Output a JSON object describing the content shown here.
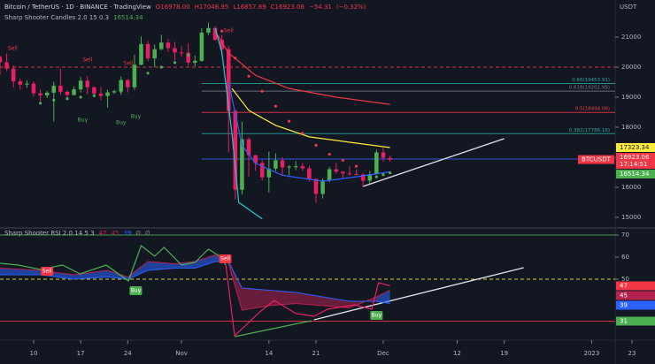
{
  "chart_data": [
    {
      "type": "candlestick",
      "title": "Bitcoin / TetherUS · 1D · BINANCE · TradingView",
      "ohlc_labels": [
        {
          "value": 16978.0,
          "label": "O16978.00"
        },
        {
          "value": 17048.95,
          "label": "H17048.95"
        },
        {
          "value": 16857.89,
          "label": "L16857.89"
        },
        {
          "value": 16923.06,
          "label": "C16923.06"
        },
        {
          "value": -54.31,
          "label": "−54.31"
        },
        {
          "value": -0.32,
          "label": "(−0.32%)"
        }
      ],
      "ohlc_color": "#f23645",
      "currency": "USDT",
      "indicator": "Sharp Shooter Candles 2.0 15 0.3",
      "symbol": "BTCUSDT",
      "countdown": "17:14:51",
      "box_color": "#f23645",
      "up_color": "#4caf50",
      "down_color": "#e91e63",
      "x": [
        4,
        5,
        6,
        7,
        8,
        9,
        10,
        11,
        12,
        13,
        14,
        15,
        16,
        17,
        18,
        19,
        20,
        21,
        22,
        23,
        24,
        25,
        26,
        27,
        28,
        29,
        30,
        31,
        32,
        33,
        34,
        35,
        36,
        37,
        38,
        39,
        40,
        41,
        42,
        43,
        44,
        45,
        46,
        47,
        48,
        49,
        50,
        51,
        52,
        53,
        54,
        55,
        56,
        57,
        58,
        59,
        60,
        61,
        62
      ],
      "open": [
        20340,
        20160,
        19950,
        19530,
        19420,
        19450,
        19130,
        19060,
        19150,
        19380,
        19180,
        19070,
        19260,
        19550,
        19330,
        19120,
        19040,
        19160,
        19200,
        19570,
        19330,
        20080,
        20770,
        20290,
        20600,
        20820,
        20630,
        20490,
        20480,
        20150,
        20210,
        21150,
        21300,
        20910,
        20600,
        18540,
        15920,
        17600,
        17070,
        16810,
        16330,
        16620,
        16900,
        16660,
        16690,
        16700,
        16630,
        16280,
        15780,
        16230,
        16600,
        16520,
        16460,
        16440,
        16430,
        16220,
        16440,
        17160,
        16978.0
      ],
      "high": [
        20370,
        20450,
        20050,
        19620,
        19560,
        19530,
        19260,
        19220,
        19510,
        19950,
        19220,
        19360,
        19670,
        19710,
        19360,
        19340,
        19250,
        19250,
        19690,
        19600,
        20410,
        21020,
        20870,
        20750,
        21080,
        20930,
        20840,
        20700,
        20800,
        20390,
        21300,
        21480,
        21370,
        21080,
        20700,
        18590,
        18180,
        17660,
        17080,
        16900,
        17190,
        17130,
        17000,
        16740,
        16870,
        16810,
        16720,
        16290,
        16300,
        16680,
        16810,
        16530,
        16700,
        16600,
        16480,
        16550,
        17250,
        17320,
        17048.95
      ],
      "low": [
        19750,
        19860,
        19320,
        19250,
        19320,
        19020,
        18860,
        18970,
        18190,
        19080,
        18980,
        19060,
        19160,
        19100,
        19000,
        18900,
        18650,
        19110,
        19070,
        19160,
        19240,
        20060,
        20200,
        20000,
        20560,
        20500,
        20220,
        20340,
        20050,
        20030,
        20180,
        21070,
        20880,
        20390,
        17170,
        15590,
        15760,
        16360,
        16550,
        16230,
        15820,
        16540,
        16400,
        16400,
        16570,
        16550,
        16200,
        15480,
        15630,
        16170,
        16460,
        16300,
        16400,
        16400,
        16000,
        16110,
        16430,
        16850,
        16857.89
      ],
      "close": [
        20160,
        19950,
        19530,
        19420,
        19450,
        19130,
        19060,
        19150,
        19380,
        19180,
        19070,
        19260,
        19550,
        19330,
        19120,
        19040,
        19160,
        19200,
        19570,
        19330,
        20080,
        20770,
        20290,
        20600,
        20820,
        20630,
        20490,
        20480,
        20150,
        20210,
        21150,
        21300,
        20910,
        20600,
        18540,
        15920,
        17600,
        17070,
        16810,
        16330,
        16620,
        16900,
        16660,
        16690,
        16700,
        16630,
        16280,
        15780,
        16230,
        16600,
        16520,
        16460,
        16440,
        16430,
        16220,
        16440,
        17160,
        16978,
        16923.06
      ],
      "lines": [
        {
          "color": "#f23645",
          "x": [
            36,
            38,
            42,
            47,
            54,
            62
          ],
          "values": [
            21200,
            20470,
            19730,
            19290,
            19000,
            18760
          ]
        },
        {
          "color": "#ffeb3b",
          "box_color": "#ffeb3b",
          "x": [
            38.5,
            41,
            45,
            50,
            57,
            62
          ],
          "values": [
            19290,
            18560,
            18060,
            17680,
            17470,
            17323.34
          ]
        },
        {
          "color": "#2962ff",
          "box_color": "#4caf50",
          "x": [
            38,
            40,
            42,
            46,
            52,
            57,
            62
          ],
          "values": [
            19500,
            17400,
            16800,
            16400,
            16200,
            16350,
            16514.34
          ]
        },
        {
          "color": "#26c6da",
          "x": [
            36,
            37,
            38.5,
            39.5,
            43
          ],
          "values": [
            21300,
            20500,
            17800,
            15500,
            14950
          ]
        }
      ],
      "dots": [
        {
          "color": "#4caf50",
          "x": [
            10,
            12,
            14,
            16,
            18,
            20,
            22,
            24,
            26,
            28,
            30,
            32,
            34,
            60,
            61,
            62
          ],
          "values": [
            18800,
            18900,
            18950,
            19000,
            19050,
            19100,
            19200,
            19500,
            19800,
            20000,
            20150,
            20400,
            20700,
            16350,
            16420,
            16480
          ]
        },
        {
          "color": "#f23645",
          "x": [
            37,
            39,
            41,
            43,
            45,
            47,
            49,
            51,
            53,
            55,
            57
          ],
          "values": [
            21200,
            20300,
            19700,
            19200,
            18700,
            18200,
            17800,
            17400,
            17100,
            16900,
            16700
          ]
        }
      ],
      "levels": [
        {
          "value": 20000,
          "color": "#f23645",
          "dashed": true
        },
        {
          "value": 19453.91,
          "x0": 34,
          "label": "0.66(19453.91)",
          "color": "#26a69a"
        },
        {
          "value": 19201.95,
          "x0": 34,
          "label": "0.618(19201.95)",
          "color": "#787b86"
        },
        {
          "value": 18494.06,
          "x0": 34,
          "label": "0.5(18494.06)",
          "color": "#f23645"
        },
        {
          "value": 17786.16,
          "x0": 34,
          "label": "0.382(17786.16)",
          "color": "#26a69a"
        },
        {
          "value": 16940,
          "x0": 34,
          "color": "#2962ff"
        }
      ],
      "annotations": [
        {
          "text": "Sell",
          "x": 5.9,
          "y": 20620,
          "color": "#f23645"
        },
        {
          "text": "Sell",
          "x": 17,
          "y": 20240,
          "color": "#f23645"
        },
        {
          "text": "Sell",
          "x": 23.1,
          "y": 20120,
          "color": "#f23645"
        },
        {
          "text": "Sell",
          "x": 38,
          "y": 21210,
          "color": "#f23645"
        },
        {
          "text": "Buy",
          "x": 16.3,
          "y": 18240,
          "color": "#4caf50"
        },
        {
          "text": "Buy",
          "x": 22,
          "y": 18150,
          "color": "#4caf50"
        },
        {
          "text": "Buy",
          "x": 24.2,
          "y": 18350,
          "color": "#4caf50"
        }
      ],
      "trendlines": [
        {
          "color": "#e0e3eb",
          "x": [
            58,
            79
          ],
          "values": [
            16030,
            17620
          ]
        }
      ],
      "xlim": [
        4,
        95.5
      ],
      "ylim": [
        14647,
        22235
      ],
      "yticks": [
        15000,
        16000,
        17000,
        18000,
        19000,
        20000,
        21000
      ]
    },
    {
      "type": "line",
      "indicator": "Sharp Shooter RSI 2.0 14 5 3",
      "na_labels": [
        "Ø",
        "Ø"
      ],
      "series": [
        {
          "color": "#4caf50",
          "x": [
            4,
            6.7,
            10,
            13.3,
            15.9,
            19.8,
            23.1,
            25,
            27,
            28.4,
            31,
            33,
            35,
            36.7,
            37.6
          ],
          "values": [
            57.2,
            56.4,
            54.4,
            56.4,
            52.4,
            56.4,
            49.2,
            65.2,
            60.4,
            64.4,
            56.4,
            57.6,
            63.6,
            60.4,
            56.4
          ]
        },
        {
          "color": "#e91e63",
          "box_color": "#f23645",
          "x": [
            37.6,
            38.9,
            42.8,
            44.8,
            48,
            50.7,
            52.7,
            56.7,
            59.3,
            60.3,
            62
          ],
          "values": [
            56.4,
            24.4,
            35.6,
            40.4,
            34.5,
            33.2,
            36.4,
            38.4,
            36.4,
            48.4,
            47
          ]
        }
      ],
      "band": [
        {
          "color": "#b2234f",
          "box_color": "#b2234f",
          "x": [
            4,
            10,
            15,
            20,
            23,
            26,
            30,
            33,
            36,
            38,
            40,
            44,
            48,
            52,
            56,
            60,
            62
          ],
          "values": [
            55,
            54,
            52,
            54,
            51,
            58,
            57,
            58,
            61,
            57,
            36,
            38,
            39,
            38,
            37,
            42,
            45
          ]
        },
        {
          "color": "#2962ff",
          "box_color": "#2962ff",
          "x": [
            4,
            10,
            15,
            20,
            23,
            26,
            30,
            33,
            36,
            38,
            40,
            44,
            48,
            52,
            56,
            60,
            62
          ],
          "values": [
            52,
            52,
            50,
            51,
            50,
            54,
            55,
            55,
            58,
            58,
            46,
            45,
            44,
            42,
            40,
            40,
            39
          ]
        }
      ],
      "fill_colors": [
        "#2962ff",
        "#b2234f"
      ],
      "levels": [
        {
          "value": 70,
          "color": "#4caf50"
        },
        {
          "value": 50,
          "color": "#ffeb3b",
          "dashed": true
        },
        {
          "value": 31,
          "color": "#f23645",
          "box_color": "#4caf50"
        }
      ],
      "annotations": [
        {
          "text": "Sell",
          "x": 11,
          "y": 53.6,
          "color": "#f23645",
          "boxed": true
        },
        {
          "text": "Sell",
          "x": 37.5,
          "y": 59.2,
          "color": "#f23645",
          "boxed": true
        },
        {
          "text": "Buy",
          "x": 24.2,
          "y": 44.8,
          "color": "#4caf50",
          "boxed": true
        },
        {
          "text": "Buy",
          "x": 60,
          "y": 33.6,
          "color": "#4caf50",
          "boxed": true
        }
      ],
      "trendlines": [
        {
          "color": "#4caf50",
          "x": [
            38.9,
            50.3
          ],
          "values": [
            24,
            31.2
          ]
        },
        {
          "color": "#e0e3eb",
          "x": [
            50.7,
            81.9
          ],
          "values": [
            31.6,
            55.2
          ]
        }
      ],
      "xlim": [
        4,
        95.5
      ],
      "ylim": [
        22.4,
        73.2
      ],
      "yticks": [
        50,
        60,
        70
      ],
      "xticks": [
        {
          "value": 9,
          "label": "10"
        },
        {
          "value": 16,
          "label": "17"
        },
        {
          "value": 23,
          "label": "24"
        },
        {
          "value": 31,
          "label": "Nov"
        },
        {
          "value": 44,
          "label": "14"
        },
        {
          "value": 51,
          "label": "21"
        },
        {
          "value": 61,
          "label": "Dec"
        },
        {
          "value": 72,
          "label": "12"
        },
        {
          "value": 79,
          "label": "19"
        },
        {
          "value": 92,
          "label": "2023"
        },
        {
          "value": 98,
          "label": "23"
        }
      ]
    }
  ]
}
